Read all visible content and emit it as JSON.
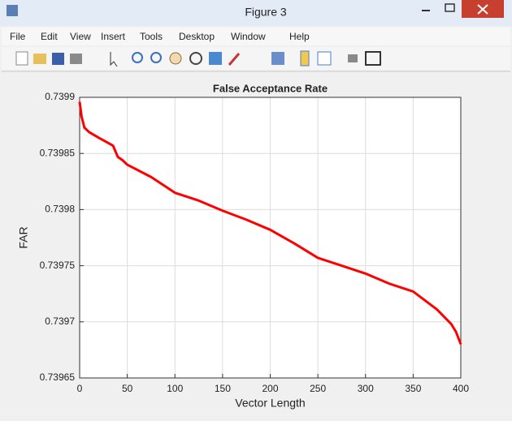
{
  "window": {
    "title": "Figure 3",
    "menu": [
      "File",
      "Edit",
      "View",
      "Insert",
      "Tools",
      "Desktop",
      "Window",
      "Help"
    ]
  },
  "chart_data": {
    "type": "line",
    "title": "False Acceptance Rate",
    "x_label": "Vector Length",
    "y_label": "FAR",
    "x": [
      0,
      2,
      5,
      10,
      20,
      35,
      40,
      45,
      50,
      75,
      100,
      125,
      150,
      175,
      200,
      225,
      250,
      275,
      300,
      325,
      350,
      375,
      390,
      395,
      400
    ],
    "series": [
      {
        "name": "FAR",
        "color": "#ff0000",
        "values": [
          0.739896,
          0.739883,
          0.739873,
          0.739869,
          0.739864,
          0.739857,
          0.739847,
          0.739844,
          0.73984,
          0.739829,
          0.739815,
          0.739808,
          0.739799,
          0.739791,
          0.739782,
          0.73977,
          0.739757,
          0.73975,
          0.739743,
          0.739734,
          0.739727,
          0.739711,
          0.739698,
          0.739691,
          0.73968
        ]
      }
    ],
    "xlim": [
      0,
      400
    ],
    "xticks": [
      0,
      50,
      100,
      150,
      200,
      250,
      300,
      350,
      400
    ],
    "ylim": [
      0.73965,
      0.7399
    ],
    "yticks": [
      0.73965,
      0.7397,
      0.73975,
      0.7398,
      0.73985,
      0.7399
    ],
    "grid": true
  }
}
